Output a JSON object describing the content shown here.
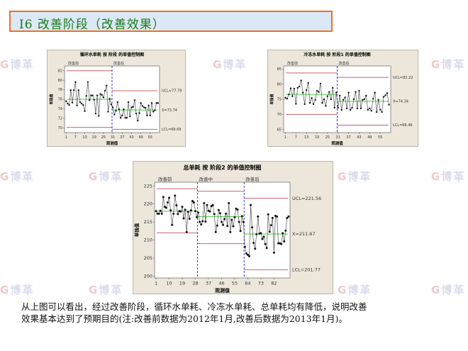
{
  "slide": {
    "title": "I6  改善阶段（改善效果）",
    "watermark": "博革",
    "caption_line1": "从上图可以看出，经过改善阶段，循环水单耗、冷冻水单耗、总单耗均有降低，说明改善",
    "caption_line2": "效果基本达到了预期目的(注:改善前数据为2012年1月,改善后数据为2013年1月)。"
  },
  "colors": {
    "limit": "#c86464",
    "center": "#40d040",
    "phase_divider": "#3a3ac8",
    "data": "#111111",
    "title_border": "#f07020",
    "title_text": "#1a7a1a"
  },
  "chart_data": [
    {
      "type": "line",
      "title": "循环水单耗 按 阶段 的单值控制图",
      "xlabel": "观测值",
      "ylabel": "单独值",
      "ylim": [
        69,
        83
      ],
      "yticks": [
        70,
        72,
        74,
        76,
        78,
        80,
        82
      ],
      "xticks": [
        1,
        7,
        13,
        19,
        25,
        31,
        37,
        43,
        49,
        55
      ],
      "xlim": [
        0,
        61
      ],
      "limit_labels": {
        "ucl": "UCL=77.79",
        "mean": "X=73.74",
        "lcl": "LCL=69.69"
      },
      "phases": [
        {
          "label": "改善前",
          "start": 1,
          "end": 30,
          "ucl": 82.0,
          "mean": 76.0,
          "lcl": 70.1
        },
        {
          "label": "改善后",
          "start": 31,
          "end": 60,
          "ucl": 77.79,
          "mean": 73.74,
          "lcl": 69.69
        }
      ],
      "values": [
        75.6,
        75.1,
        74.8,
        77.9,
        75.3,
        77.9,
        79.6,
        74.7,
        77.9,
        75.4,
        75.1,
        74.8,
        73.5,
        76.7,
        79.6,
        75.8,
        76.8,
        76.8,
        75.9,
        73.0,
        76.8,
        72.5,
        77.1,
        76.9,
        76.4,
        77.8,
        78.9,
        73.4,
        76.1,
        74.9,
        74.3,
        72.8,
        73.6,
        75.4,
        73.9,
        72.1,
        72.6,
        73.9,
        72.1,
        72.1,
        75.4,
        72.4,
        74.3,
        74.4,
        75.8,
        73.0,
        71.5,
        73.1,
        75.2,
        74.6,
        74.3,
        74.2,
        72.6,
        74.7,
        72.6,
        75.2,
        73.4,
        73.7,
        75.2,
        75.2
      ]
    },
    {
      "type": "line",
      "title": "冷冻水单耗 按 阶段1 的单值控制图",
      "xlabel": "观测值",
      "ylabel": "单独值",
      "ylim": [
        64,
        86
      ],
      "yticks": [
        65,
        70,
        75,
        80,
        85
      ],
      "xticks": [
        1,
        7,
        13,
        19,
        25,
        31,
        37,
        43,
        49,
        55
      ],
      "xlim": [
        0,
        61
      ],
      "limit_labels": {
        "ucl": "UCL=82.22",
        "mean": "X=74.34",
        "lcl": "LCL=66.46"
      },
      "phases": [
        {
          "label": "改善前",
          "start": 1,
          "end": 30,
          "ucl": 83.7,
          "mean": 76.6,
          "lcl": 70.0
        },
        {
          "label": "改善后",
          "start": 31,
          "end": 60,
          "ucl": 82.22,
          "mean": 74.34,
          "lcl": 66.46
        }
      ],
      "values": [
        75.5,
        75.2,
        76.6,
        78.6,
        76.0,
        78.5,
        73.5,
        78.8,
        79.2,
        81.2,
        77.2,
        73.4,
        78.0,
        80.4,
        73.8,
        75.4,
        73.4,
        74.8,
        77.8,
        77.4,
        80.2,
        73.8,
        75.0,
        72.8,
        76.0,
        77.4,
        75.0,
        78.8,
        72.2,
        77.2,
        72.2,
        76.2,
        71.5,
        74.8,
        75.6,
        72.0,
        77.2,
        71.5,
        72.2,
        75.0,
        77.4,
        72.0,
        77.8,
        72.0,
        74.8,
        75.0,
        76.2,
        71.5,
        72.0,
        71.2,
        75.2,
        77.2,
        70.8,
        74.8,
        71.6,
        70.8,
        75.8,
        76.3,
        77.0,
        73.2
      ]
    },
    {
      "type": "line",
      "title": "总单耗 按 阶段2 的单值控制图",
      "xlabel": "观测值",
      "ylabel": "单独值",
      "ylim": [
        199.5,
        226
      ],
      "yticks": [
        200,
        205,
        210,
        215,
        220,
        225
      ],
      "xticks": [
        1,
        10,
        19,
        28,
        37,
        46,
        55,
        64,
        73,
        82
      ],
      "xlim": [
        0,
        93
      ],
      "limit_labels": {
        "ucl": "UCL=221.56",
        "mean": "X=211.67",
        "lcl": "LCL=201.77"
      },
      "phases": [
        {
          "label": "改善前",
          "start": 1,
          "end": 29,
          "ucl": 224.2,
          "mean": 218.0,
          "lcl": 212.0
        },
        {
          "label": "改善中",
          "start": 30,
          "end": 61,
          "ucl": 223.5,
          "mean": 216.5,
          "lcl": 209.0
        },
        {
          "label": "改善后",
          "start": 62,
          "end": 92,
          "ucl": 221.56,
          "mean": 211.67,
          "lcl": 201.77
        }
      ],
      "values": [
        218,
        217.3,
        217.3,
        218.1,
        217.3,
        221.9,
        219.2,
        218.9,
        220.4,
        221.7,
        218.2,
        214.2,
        217.3,
        222.3,
        219.6,
        217.2,
        218.0,
        217.9,
        219.2,
        216.0,
        218.4,
        212.2,
        217.8,
        215.9,
        218.2,
        220.8,
        220.4,
        218.0,
        216.3,
        217.6,
        215.0,
        214.3,
        215.2,
        220.2,
        215.1,
        219.7,
        218.1,
        217.9,
        219.4,
        219.7,
        217.2,
        212.2,
        214.0,
        218.3,
        217.4,
        215.0,
        214.2,
        215.8,
        217.3,
        213.9,
        220.2,
        212.2,
        215.6,
        213.8,
        216.3,
        218.7,
        218.4,
        215.0,
        212.5,
        216.6,
        215.0,
        208.1,
        206.3,
        205.9,
        205.5,
        219.7,
        213.5,
        209.2,
        207.6,
        211.6,
        216.5,
        211.8,
        211.9,
        210.3,
        210.9,
        208.9,
        207.8,
        217.1,
        212.3,
        214.1,
        216.1,
        206.5,
        216.7,
        216.5,
        209.1,
        209.1,
        208.9,
        211.9,
        209.6,
        212.6,
        216.1,
        216.5
      ]
    }
  ]
}
